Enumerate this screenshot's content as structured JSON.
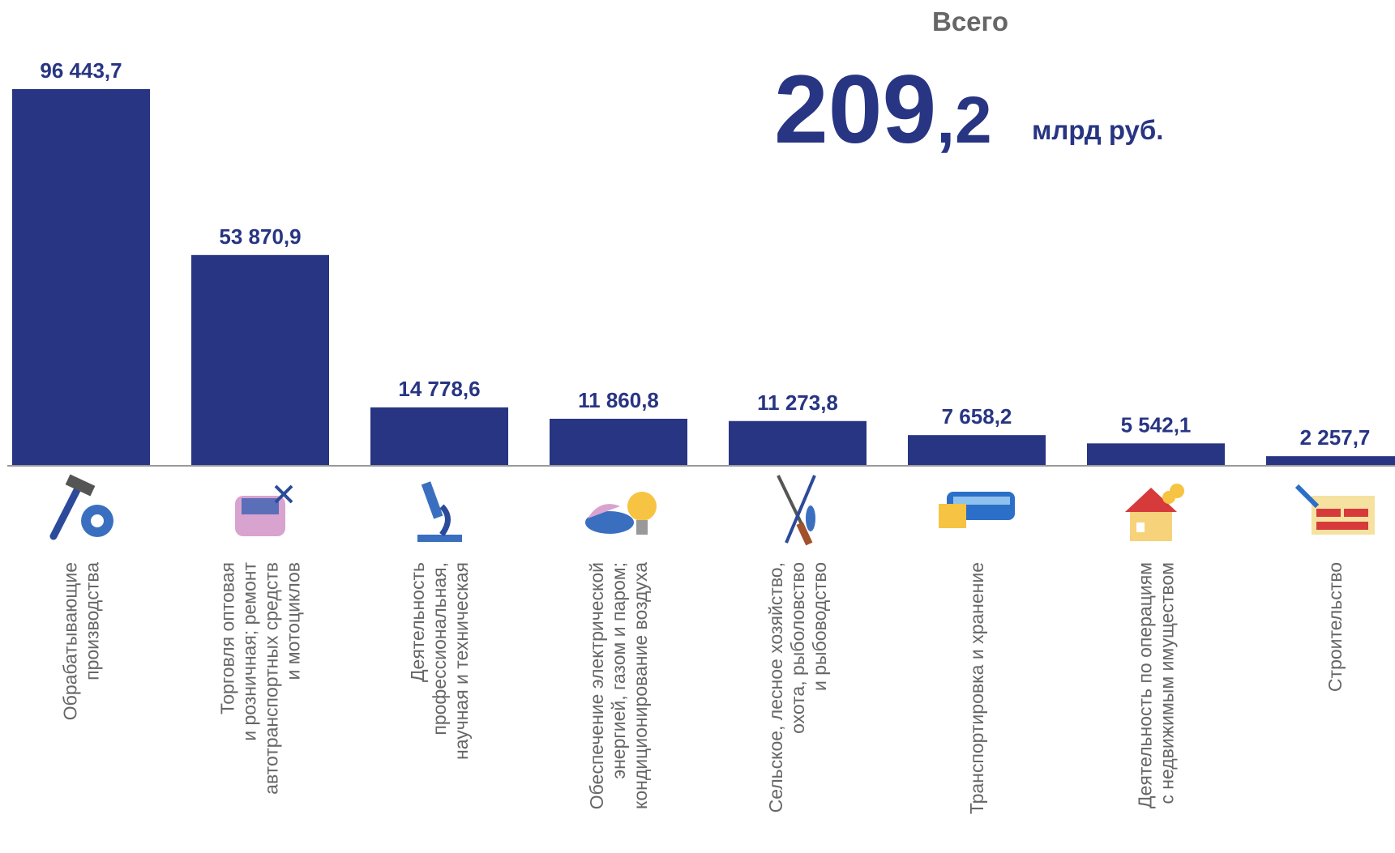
{
  "chart_data": {
    "type": "bar",
    "total_label": "Всего",
    "total_integer": "209",
    "total_fraction": ",2",
    "total_unit": "млрд руб.",
    "categories": [
      [
        "Обрабатывающие",
        "производства"
      ],
      [
        "Торговля оптовая",
        "и розничная; ремонт",
        "автотранспортных средств",
        "и мотоциклов"
      ],
      [
        "Деятельность",
        "профессиональная,",
        "научная и техническая"
      ],
      [
        "Обеспечение электрической",
        "энергией, газом и паром;",
        "кондиционирование воздуха"
      ],
      [
        "Сельское, лесное хозяйство,",
        "охота, рыболовство",
        "и рыбоводство"
      ],
      [
        "Транспортировка и хранение"
      ],
      [
        "Деятельность по операциям",
        "с недвижимым имуществом"
      ],
      [
        "Строительство"
      ]
    ],
    "values": [
      96443.7,
      53870.9,
      14778.6,
      11860.8,
      11273.8,
      7658.2,
      5542.1,
      2257.7
    ],
    "value_labels": [
      "96 443,7",
      "53 870,9",
      "14 778,6",
      "11 860,8",
      "11 273,8",
      "7 658,2",
      "5 542,1",
      "2 257,7"
    ],
    "color": "#283583"
  }
}
